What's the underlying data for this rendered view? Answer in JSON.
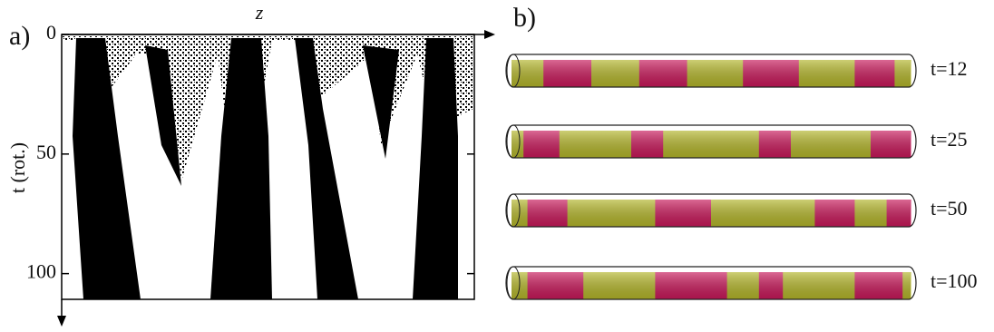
{
  "panel_a": {
    "label": "a)",
    "x_label": "z",
    "y_label": "t (rot.)",
    "ylim": [
      0,
      110
    ],
    "yticks": [
      0,
      50,
      100
    ]
  },
  "panel_b": {
    "label": "b)",
    "snapshots": [
      "t=12",
      "t=25",
      "t=50",
      "t=100"
    ]
  }
}
